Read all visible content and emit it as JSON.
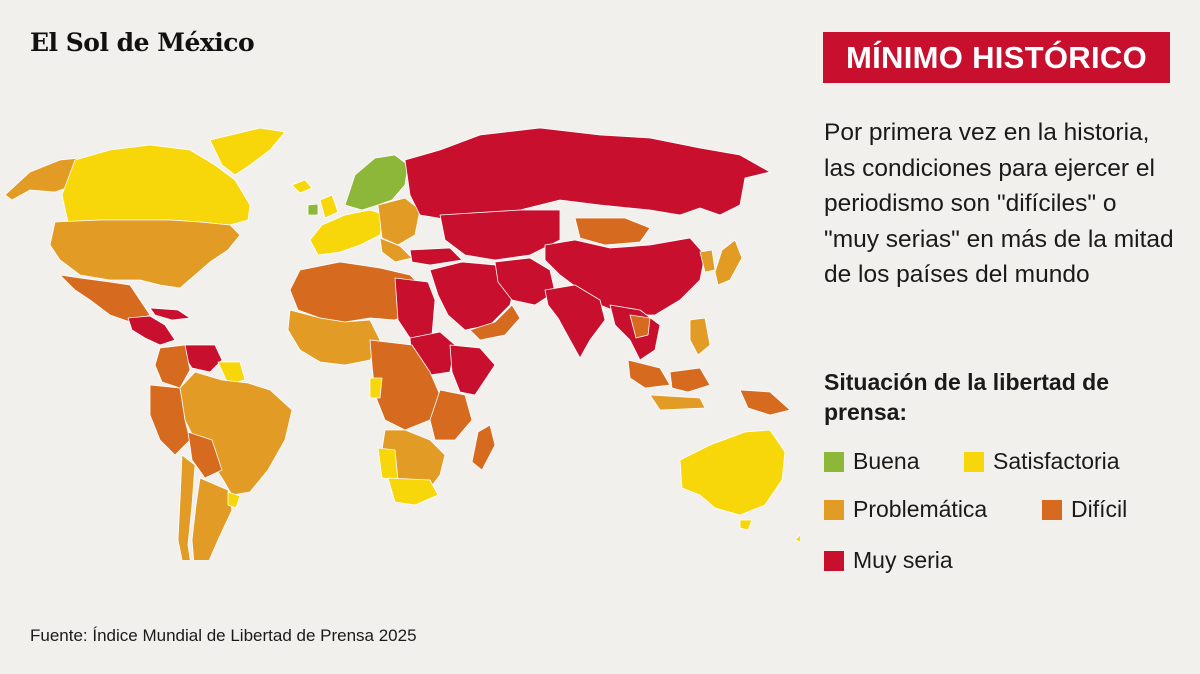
{
  "header": {
    "logo_text": "El Sol de México",
    "badge_text": "MÍNIMO HISTÓRICO"
  },
  "description": "Por primera vez en la historia, las condiciones para ejercer el periodismo son \"difíciles\" o \"muy serias\" en más de la mitad de los países del mundo",
  "legend": {
    "title": "Situación de la libertad de prensa:",
    "items": [
      {
        "label": "Buena",
        "color": "#8db739"
      },
      {
        "label": "Satisfactoria",
        "color": "#f7d60a"
      },
      {
        "label": "Problemática",
        "color": "#e29b24"
      },
      {
        "label": "Difícil",
        "color": "#d66a1e"
      },
      {
        "label": "Muy seria",
        "color": "#c8102e"
      }
    ]
  },
  "colors": {
    "buena": "#8db739",
    "satisfactoria": "#f7d60a",
    "problematica": "#e29b24",
    "dificil": "#d66a1e",
    "muy_seria": "#c8102e"
  },
  "source": "Fuente: Índice Mundial de Libertad de Prensa 2025"
}
